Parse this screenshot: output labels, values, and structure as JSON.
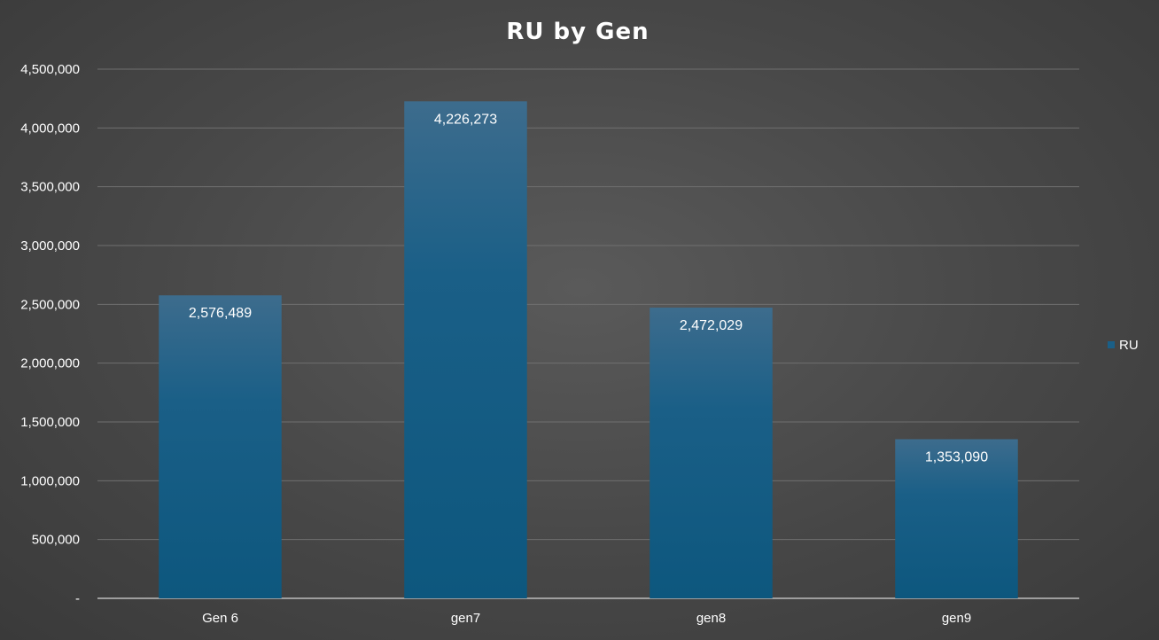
{
  "chart_data": {
    "type": "bar",
    "title": "RU by Gen",
    "categories": [
      "Gen 6",
      "gen7",
      "gen8",
      "gen9"
    ],
    "series": [
      {
        "name": "RU",
        "values": [
          2576489,
          4226273,
          2472029,
          1353090
        ],
        "color": "#1a5f87"
      }
    ],
    "data_labels": [
      "2,576,489",
      "4,226,273",
      "2,472,029",
      "1,353,090"
    ],
    "ylim": [
      0,
      4500000
    ],
    "y_ticks": [
      0,
      500000,
      1000000,
      1500000,
      2000000,
      2500000,
      3000000,
      3500000,
      4000000,
      4500000
    ],
    "y_tick_labels": [
      "-",
      "500,000",
      "1,000,000",
      "1,500,000",
      "2,000,000",
      "2,500,000",
      "3,000,000",
      "3,500,000",
      "4,000,000",
      "4,500,000"
    ],
    "xlabel": "",
    "ylabel": "",
    "grid": true,
    "legend_position": "right"
  }
}
